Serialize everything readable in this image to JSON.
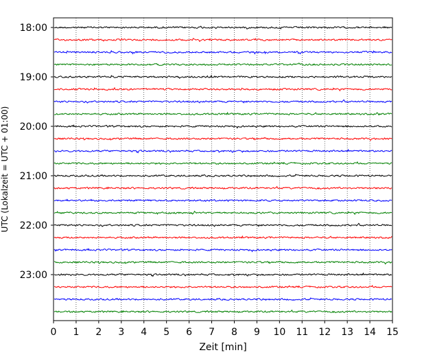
{
  "chart_data": {
    "type": "line",
    "title": "",
    "xlabel": "Zeit  [min]",
    "ylabel": "UTC (Lokalzeit = UTC + 01:00)",
    "xlim": [
      0,
      15
    ],
    "xticks": [
      0,
      1,
      2,
      3,
      4,
      5,
      6,
      7,
      8,
      9,
      10,
      11,
      12,
      13,
      14,
      15
    ],
    "yticks": [
      {
        "label": "18:00",
        "trace_index": 0
      },
      {
        "label": "19:00",
        "trace_index": 4
      },
      {
        "label": "20:00",
        "trace_index": 8
      },
      {
        "label": "21:00",
        "trace_index": 12
      },
      {
        "label": "22:00",
        "trace_index": 16
      },
      {
        "label": "23:00",
        "trace_index": 20
      }
    ],
    "vertical_grid": true,
    "grid_style": "dotted",
    "trace_count": 24,
    "trace_interval_minutes": 15,
    "color_cycle": [
      "#000000",
      "#ff0000",
      "#0000ff",
      "#008000"
    ]
  }
}
